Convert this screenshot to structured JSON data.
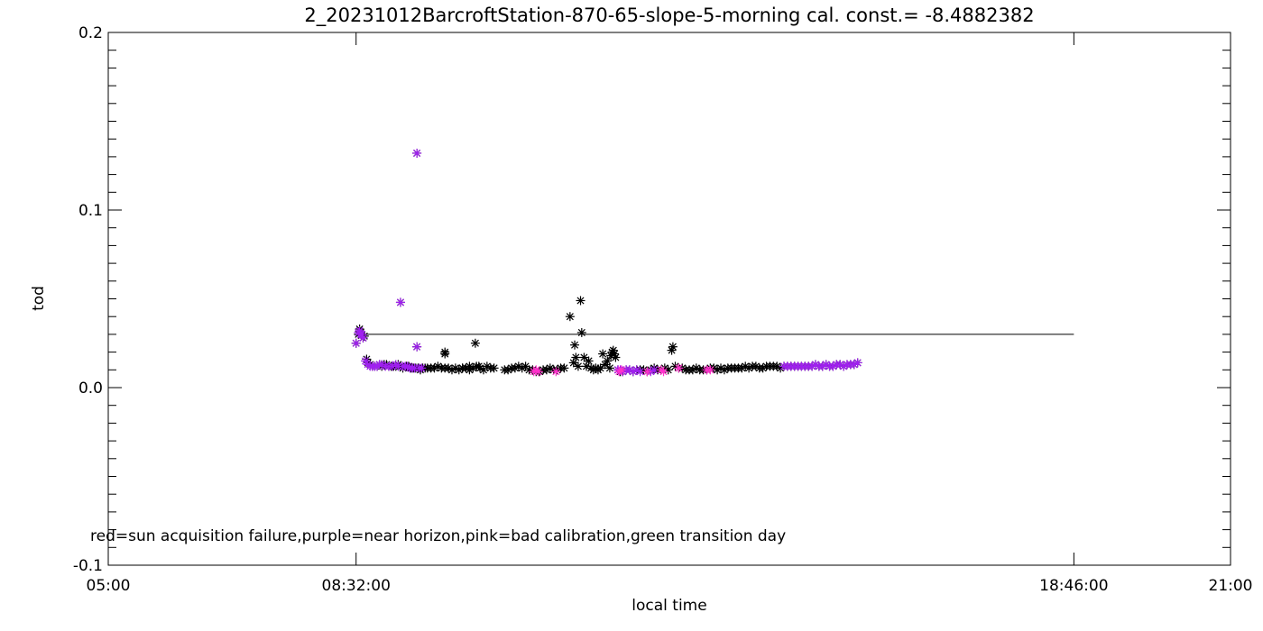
{
  "chart_data": {
    "type": "scatter",
    "title": "2_20231012BarcroftStation-870-65-slope-5-morning cal. const.= -8.4882382",
    "xlabel": "local time",
    "ylabel": "tod",
    "xlim": [
      "05:00",
      "21:00"
    ],
    "ylim": [
      -0.1,
      0.2
    ],
    "x_tick_labels": [
      "05:00",
      "08:32:00",
      "18:46:00",
      "21:00"
    ],
    "y_tick_labels": [
      "-0.1",
      "0.0",
      "0.1",
      "0.2"
    ],
    "y_tick_values": [
      -0.1,
      0.0,
      0.1,
      0.2
    ],
    "annotation": "red=sun acquisition failure,purple=near horizon,pink=bad calibration,green transition day",
    "reference_line": {
      "x_start": "08:32",
      "x_end": "18:46",
      "y": 0.03
    },
    "colors": {
      "all": "#000000",
      "purple": "#a020f0",
      "pink": "#ff33cc",
      "line": "#000000"
    },
    "series": [
      {
        "points": [
          [
            "08:32",
            0.025
          ],
          [
            "08:34",
            0.03
          ],
          [
            "08:35",
            0.033
          ],
          [
            "08:36",
            0.031
          ],
          [
            "08:37",
            0.03
          ],
          [
            "08:38",
            0.028
          ],
          [
            "08:39",
            0.029
          ],
          [
            "08:41",
            0.016
          ],
          [
            "08:42",
            0.014
          ],
          [
            "08:44",
            0.013
          ],
          [
            "08:46",
            0.012
          ],
          [
            "08:48",
            0.012
          ],
          [
            "08:50",
            0.012
          ],
          [
            "08:52",
            0.013
          ],
          [
            "08:54",
            0.012
          ],
          [
            "08:56",
            0.013
          ],
          [
            "08:58",
            0.013
          ],
          [
            "09:00",
            0.012
          ],
          [
            "09:02",
            0.012
          ],
          [
            "09:04",
            0.012
          ],
          [
            "09:06",
            0.012
          ],
          [
            "09:08",
            0.013
          ],
          [
            "09:10",
            0.012
          ],
          [
            "09:12",
            0.011
          ],
          [
            "09:15",
            0.012
          ],
          [
            "09:17",
            0.012
          ],
          [
            "09:19",
            0.011
          ],
          [
            "09:21",
            0.011
          ],
          [
            "09:23",
            0.011
          ],
          [
            "09:25",
            0.011
          ],
          [
            "09:27",
            0.01
          ],
          [
            "09:29",
            0.011
          ],
          [
            "09:31",
            0.011
          ],
          [
            "09:33",
            0.011
          ],
          [
            "09:36",
            0.011
          ],
          [
            "09:39",
            0.011
          ],
          [
            "09:42",
            0.012
          ],
          [
            "09:45",
            0.011
          ],
          [
            "09:48",
            0.011
          ],
          [
            "09:51",
            0.011
          ],
          [
            "09:54",
            0.01
          ],
          [
            "09:57",
            0.011
          ],
          [
            "10:00",
            0.01
          ],
          [
            "10:03",
            0.011
          ],
          [
            "10:06",
            0.011
          ],
          [
            "10:09",
            0.01
          ],
          [
            "10:12",
            0.011
          ],
          [
            "10:15",
            0.012
          ],
          [
            "10:18",
            0.011
          ],
          [
            "10:21",
            0.01
          ],
          [
            "10:24",
            0.012
          ],
          [
            "10:27",
            0.011
          ],
          [
            "10:30",
            0.011
          ],
          [
            "10:39",
            0.01
          ],
          [
            "10:42",
            0.01
          ],
          [
            "10:45",
            0.011
          ],
          [
            "10:48",
            0.011
          ],
          [
            "10:51",
            0.012
          ],
          [
            "10:54",
            0.011
          ],
          [
            "10:57",
            0.012
          ],
          [
            "11:00",
            0.01
          ],
          [
            "11:03",
            0.01
          ],
          [
            "11:06",
            0.009
          ],
          [
            "11:09",
            0.009
          ],
          [
            "11:12",
            0.01
          ],
          [
            "11:15",
            0.01
          ],
          [
            "11:18",
            0.011
          ],
          [
            "11:21",
            0.01
          ],
          [
            "11:24",
            0.01
          ],
          [
            "11:27",
            0.011
          ],
          [
            "11:30",
            0.011
          ],
          [
            "11:35",
            0.04
          ],
          [
            "11:38",
            0.014
          ],
          [
            "11:39",
            0.024
          ],
          [
            "11:40",
            0.017
          ],
          [
            "11:42",
            0.012
          ],
          [
            "11:44",
            0.049
          ],
          [
            "11:45",
            0.031
          ],
          [
            "11:47",
            0.017
          ],
          [
            "11:49",
            0.012
          ],
          [
            "11:51",
            0.015
          ],
          [
            "11:53",
            0.011
          ],
          [
            "11:55",
            0.01
          ],
          [
            "11:57",
            0.011
          ],
          [
            "11:59",
            0.01
          ],
          [
            "12:01",
            0.011
          ],
          [
            "12:03",
            0.019
          ],
          [
            "12:05",
            0.013
          ],
          [
            "12:07",
            0.015
          ],
          [
            "12:09",
            0.011
          ],
          [
            "12:10",
            0.018
          ],
          [
            "12:11",
            0.02
          ],
          [
            "12:12",
            0.021
          ],
          [
            "12:13",
            0.019
          ],
          [
            "12:14",
            0.017
          ],
          [
            "12:16",
            0.01
          ],
          [
            "12:18",
            0.009
          ],
          [
            "12:20",
            0.009
          ],
          [
            "12:23",
            0.01
          ],
          [
            "12:26",
            0.01
          ],
          [
            "12:29",
            0.009
          ],
          [
            "12:32",
            0.01
          ],
          [
            "12:35",
            0.01
          ],
          [
            "12:38",
            0.01
          ],
          [
            "12:41",
            0.009
          ],
          [
            "12:44",
            0.01
          ],
          [
            "12:47",
            0.011
          ],
          [
            "12:50",
            0.01
          ],
          [
            "12:53",
            0.01
          ],
          [
            "12:56",
            0.011
          ],
          [
            "12:59",
            0.01
          ],
          [
            "13:02",
            0.021
          ],
          [
            "13:03",
            0.023
          ],
          [
            "13:05",
            0.012
          ],
          [
            "13:08",
            0.011
          ],
          [
            "13:11",
            0.011
          ],
          [
            "13:14",
            0.01
          ],
          [
            "13:17",
            0.01
          ],
          [
            "13:20",
            0.01
          ],
          [
            "13:23",
            0.011
          ],
          [
            "13:26",
            0.01
          ],
          [
            "13:29",
            0.01
          ],
          [
            "13:32",
            0.01
          ],
          [
            "13:35",
            0.011
          ],
          [
            "13:38",
            0.011
          ],
          [
            "13:41",
            0.01
          ],
          [
            "13:44",
            0.011
          ],
          [
            "13:47",
            0.01
          ],
          [
            "13:50",
            0.011
          ],
          [
            "13:53",
            0.011
          ],
          [
            "13:56",
            0.011
          ],
          [
            "13:59",
            0.011
          ],
          [
            "14:02",
            0.011
          ],
          [
            "14:05",
            0.012
          ],
          [
            "14:08",
            0.011
          ],
          [
            "14:11",
            0.012
          ],
          [
            "14:14",
            0.012
          ],
          [
            "14:17",
            0.011
          ],
          [
            "14:20",
            0.011
          ],
          [
            "14:23",
            0.012
          ],
          [
            "14:26",
            0.012
          ],
          [
            "14:29",
            0.012
          ],
          [
            "14:32",
            0.012
          ],
          [
            "14:35",
            0.011
          ],
          [
            "14:38",
            0.012
          ],
          [
            "14:41",
            0.012
          ],
          [
            "14:44",
            0.012
          ],
          [
            "14:47",
            0.012
          ],
          [
            "14:50",
            0.012
          ],
          [
            "14:53",
            0.012
          ],
          [
            "09:10",
            0.048
          ],
          [
            "09:24",
            0.132
          ],
          [
            "09:24",
            0.023
          ],
          [
            "09:48",
            0.02
          ],
          [
            "09:48",
            0.019
          ],
          [
            "10:03",
            0.011
          ],
          [
            "10:09",
            0.012
          ],
          [
            "10:14",
            0.025
          ],
          [
            "10:17",
            0.012
          ],
          [
            "14:56",
            0.012
          ],
          [
            "14:59",
            0.012
          ],
          [
            "15:02",
            0.012
          ],
          [
            "15:05",
            0.013
          ],
          [
            "15:08",
            0.012
          ],
          [
            "15:11",
            0.012
          ],
          [
            "15:14",
            0.013
          ],
          [
            "15:17",
            0.012
          ],
          [
            "15:20",
            0.012
          ],
          [
            "15:23",
            0.013
          ],
          [
            "15:26",
            0.013
          ],
          [
            "15:29",
            0.012
          ],
          [
            "15:32",
            0.013
          ],
          [
            "15:35",
            0.013
          ],
          [
            "15:38",
            0.013
          ],
          [
            "15:41",
            0.014
          ]
        ]
      },
      {
        "points": [
          [
            "08:32",
            0.025
          ],
          [
            "08:34",
            0.031
          ],
          [
            "08:35",
            0.032
          ],
          [
            "08:36",
            0.03
          ],
          [
            "08:37",
            0.03
          ],
          [
            "08:38",
            0.028
          ],
          [
            "08:40",
            0.015
          ],
          [
            "08:42",
            0.013
          ],
          [
            "08:44",
            0.012
          ],
          [
            "08:46",
            0.012
          ],
          [
            "08:48",
            0.012
          ],
          [
            "08:50",
            0.012
          ],
          [
            "08:52",
            0.013
          ],
          [
            "08:54",
            0.013
          ],
          [
            "08:57",
            0.012
          ],
          [
            "09:00",
            0.012
          ],
          [
            "09:03",
            0.012
          ],
          [
            "09:06",
            0.013
          ],
          [
            "09:08",
            0.012
          ],
          [
            "09:10",
            0.048
          ],
          [
            "09:12",
            0.012
          ],
          [
            "09:14",
            0.012
          ],
          [
            "09:16",
            0.012
          ],
          [
            "09:18",
            0.011
          ],
          [
            "09:20",
            0.011
          ],
          [
            "09:22",
            0.011
          ],
          [
            "09:24",
            0.132
          ],
          [
            "09:24",
            0.023
          ],
          [
            "09:26",
            0.011
          ],
          [
            "09:28",
            0.011
          ],
          [
            "12:16",
            0.01
          ],
          [
            "12:18",
            0.01
          ],
          [
            "12:20",
            0.009
          ],
          [
            "12:23",
            0.01
          ],
          [
            "12:26",
            0.01
          ],
          [
            "12:29",
            0.009
          ],
          [
            "12:32",
            0.01
          ],
          [
            "12:35",
            0.009
          ],
          [
            "12:44",
            0.009
          ],
          [
            "12:47",
            0.01
          ],
          [
            "14:38",
            0.012
          ],
          [
            "14:41",
            0.012
          ],
          [
            "14:44",
            0.012
          ],
          [
            "14:47",
            0.012
          ],
          [
            "14:50",
            0.012
          ],
          [
            "14:53",
            0.012
          ],
          [
            "14:56",
            0.012
          ],
          [
            "14:59",
            0.012
          ],
          [
            "15:02",
            0.012
          ],
          [
            "15:05",
            0.013
          ],
          [
            "15:08",
            0.012
          ],
          [
            "15:11",
            0.012
          ],
          [
            "15:14",
            0.013
          ],
          [
            "15:17",
            0.012
          ],
          [
            "15:20",
            0.012
          ],
          [
            "15:23",
            0.013
          ],
          [
            "15:26",
            0.013
          ],
          [
            "15:29",
            0.012
          ],
          [
            "15:32",
            0.013
          ],
          [
            "15:35",
            0.013
          ],
          [
            "15:38",
            0.013
          ],
          [
            "15:41",
            0.014
          ]
        ]
      },
      {
        "points": [
          [
            "11:04",
            0.009
          ],
          [
            "11:06",
            0.01
          ],
          [
            "11:08",
            0.009
          ],
          [
            "11:23",
            0.009
          ],
          [
            "12:17",
            0.009
          ],
          [
            "12:19",
            0.01
          ],
          [
            "12:41",
            0.009
          ],
          [
            "12:53",
            0.01
          ],
          [
            "12:55",
            0.009
          ],
          [
            "13:08",
            0.011
          ],
          [
            "13:32",
            0.01
          ],
          [
            "13:35",
            0.01
          ]
        ]
      }
    ]
  }
}
